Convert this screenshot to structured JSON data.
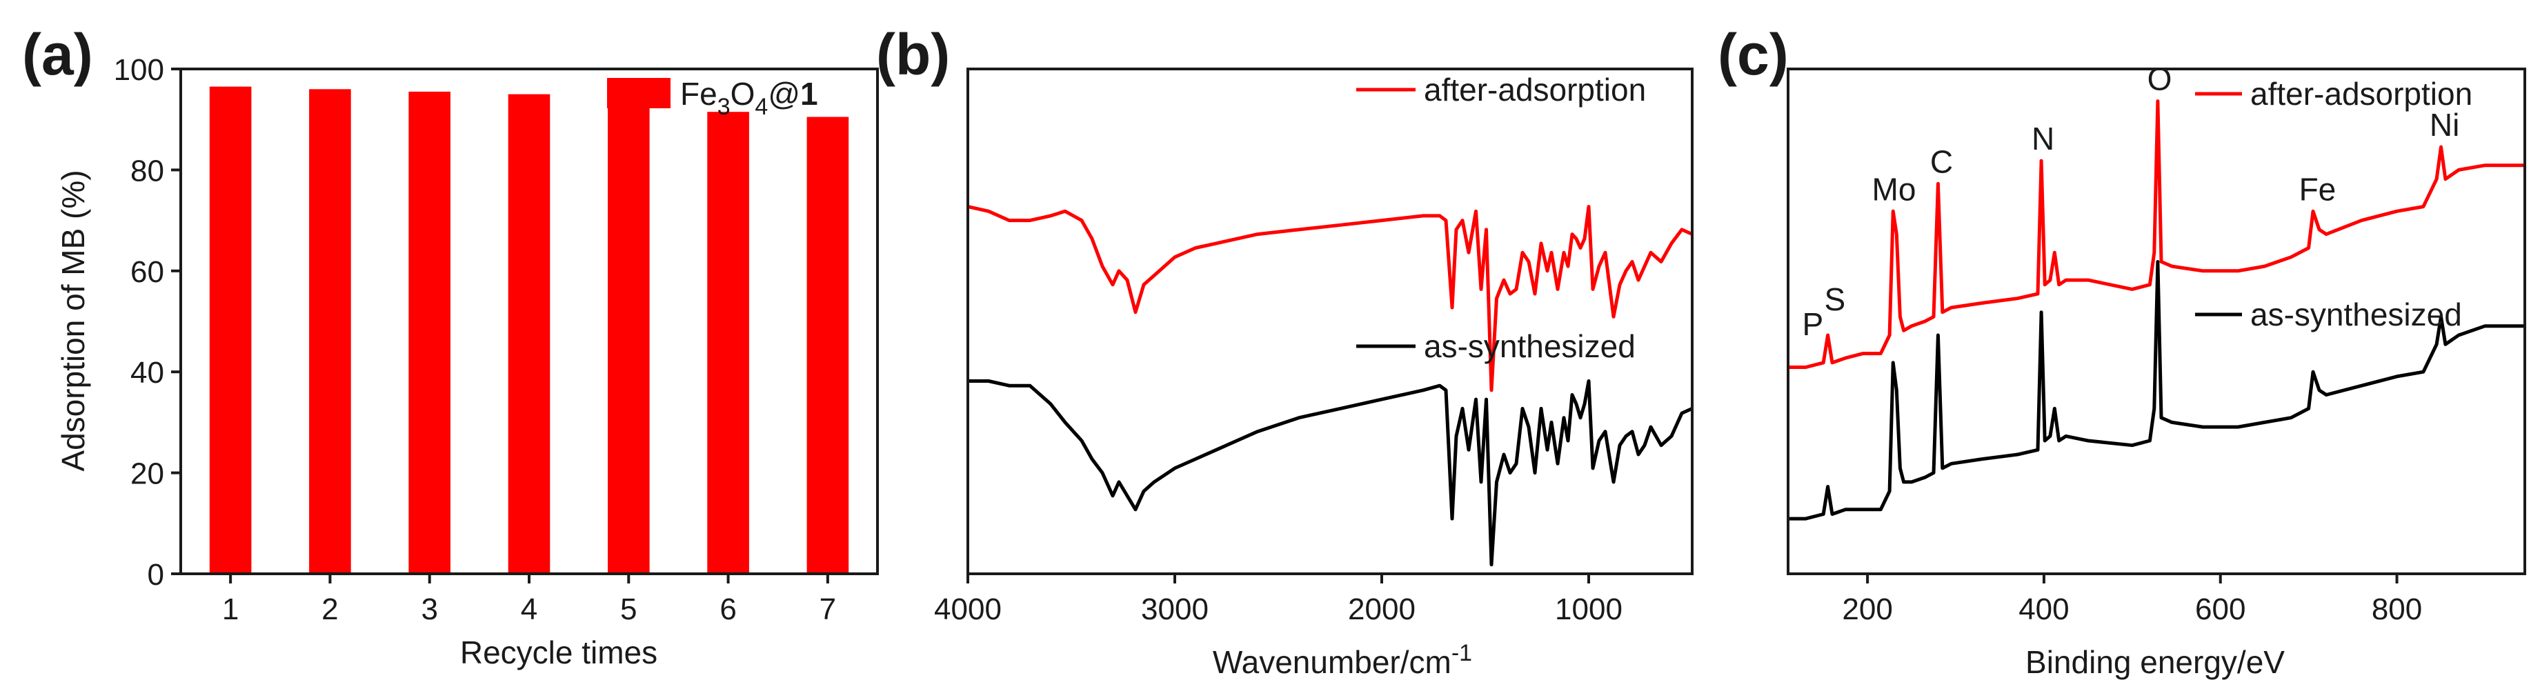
{
  "figure_title": "",
  "chart_data": [
    {
      "type": "bar",
      "panel_label": "(a)",
      "title": "",
      "xlabel": "Recycle times",
      "ylabel": "Adsorption of MB (%)",
      "categories": [
        "1",
        "2",
        "3",
        "4",
        "5",
        "6",
        "7"
      ],
      "series": [
        {
          "name": "Fe3O4@1",
          "values": [
            96.5,
            96.0,
            95.5,
            95.0,
            93.5,
            91.5,
            90.5
          ]
        }
      ],
      "legend": {
        "label_parts": [
          "Fe",
          "3",
          "O",
          "4",
          "@",
          "1"
        ],
        "color": "#ff0000",
        "position": "top-right"
      },
      "ylim": [
        0,
        100
      ],
      "yticks": [
        "0",
        "20",
        "40",
        "60",
        "80",
        "100"
      ],
      "grid": false,
      "bar_color": "#ff0000"
    },
    {
      "type": "line",
      "panel_label": "(b)",
      "title": "",
      "xlabel_parts": [
        "Wavenumber/cm",
        "-1"
      ],
      "ylabel": "",
      "xlim": [
        4000,
        500
      ],
      "xticks": [
        "4000",
        "3000",
        "2000",
        "1000"
      ],
      "xtick_values": [
        4000,
        3000,
        2000,
        1000
      ],
      "yticks_shown": false,
      "grid": false,
      "legend_position": "right",
      "series": [
        {
          "name": "after-adsorption",
          "color": "#ff0000",
          "x": [
            4000,
            3900,
            3800,
            3700,
            3600,
            3530,
            3450,
            3400,
            3350,
            3300,
            3270,
            3230,
            3190,
            3150,
            3100,
            3000,
            2900,
            2800,
            2600,
            2400,
            2200,
            2000,
            1800,
            1720,
            1690,
            1660,
            1640,
            1610,
            1580,
            1545,
            1520,
            1495,
            1470,
            1445,
            1410,
            1380,
            1350,
            1320,
            1290,
            1260,
            1230,
            1200,
            1180,
            1150,
            1120,
            1100,
            1080,
            1060,
            1040,
            1020,
            1000,
            980,
            950,
            920,
            880,
            850,
            820,
            790,
            760,
            730,
            700,
            650,
            600,
            550,
            500
          ],
          "y": [
            80,
            79,
            77,
            77,
            78,
            79,
            77,
            73,
            67,
            63,
            66,
            64,
            57,
            63,
            65,
            69,
            71,
            72,
            74,
            75,
            76,
            77,
            78,
            78,
            77,
            58,
            75,
            77,
            70,
            79,
            62,
            75,
            40,
            60,
            64,
            61,
            62,
            70,
            68,
            61,
            72,
            66,
            70,
            62,
            70,
            67,
            74,
            73,
            71,
            73,
            80,
            62,
            67,
            70,
            56,
            63,
            66,
            68,
            64,
            67,
            70,
            68,
            72,
            75,
            74
          ]
        },
        {
          "name": "as-synthesized",
          "color": "#000000",
          "x": [
            4000,
            3900,
            3800,
            3700,
            3600,
            3530,
            3450,
            3400,
            3350,
            3300,
            3270,
            3230,
            3190,
            3150,
            3100,
            3000,
            2900,
            2800,
            2600,
            2400,
            2200,
            2000,
            1800,
            1720,
            1690,
            1660,
            1640,
            1610,
            1580,
            1545,
            1520,
            1495,
            1470,
            1445,
            1410,
            1380,
            1350,
            1320,
            1290,
            1260,
            1230,
            1200,
            1180,
            1150,
            1120,
            1100,
            1080,
            1060,
            1040,
            1020,
            1000,
            980,
            950,
            920,
            880,
            850,
            820,
            790,
            760,
            730,
            700,
            650,
            600,
            550,
            500
          ],
          "y": [
            42,
            42,
            41,
            41,
            37,
            33,
            29,
            25,
            22,
            17,
            20,
            17,
            14,
            18,
            20,
            23,
            25,
            27,
            31,
            34,
            36,
            38,
            40,
            41,
            40,
            12,
            30,
            36,
            27,
            38,
            20,
            38,
            2,
            20,
            26,
            22,
            24,
            36,
            32,
            22,
            36,
            27,
            33,
            24,
            34,
            29,
            39,
            37,
            34,
            37,
            42,
            23,
            29,
            31,
            20,
            28,
            30,
            31,
            26,
            28,
            32,
            28,
            30,
            35,
            36
          ]
        }
      ]
    },
    {
      "type": "line",
      "panel_label": "(c)",
      "title": "",
      "xlabel": "Binding energy/eV",
      "ylabel": "",
      "xlim": [
        110,
        945
      ],
      "xticks": [
        "200",
        "400",
        "600",
        "800"
      ],
      "xtick_values": [
        200,
        400,
        600,
        800
      ],
      "yticks_shown": false,
      "grid": false,
      "legend_position": "right",
      "annotations": [
        {
          "text": "P",
          "x": 138
        },
        {
          "text": "S",
          "x": 163
        },
        {
          "text": "Mo",
          "x": 230
        },
        {
          "text": "C",
          "x": 284
        },
        {
          "text": "N",
          "x": 399
        },
        {
          "text": "O",
          "x": 531
        },
        {
          "text": "Fe",
          "x": 710
        },
        {
          "text": "Ni",
          "x": 854
        }
      ],
      "series": [
        {
          "name": "after-adsorption",
          "color": "#ff0000",
          "x": [
            110,
            130,
            150,
            155,
            160,
            175,
            195,
            215,
            225,
            229,
            233,
            237,
            241,
            250,
            265,
            275,
            280,
            285,
            295,
            330,
            370,
            393,
            397,
            401,
            407,
            412,
            417,
            425,
            450,
            500,
            520,
            525,
            529,
            533,
            545,
            580,
            620,
            650,
            680,
            700,
            705,
            712,
            720,
            760,
            800,
            830,
            845,
            850,
            855,
            870,
            900,
            945
          ],
          "y": [
            45,
            45,
            46,
            52,
            46,
            47,
            48,
            48,
            52,
            79,
            74,
            56,
            53,
            54,
            55,
            56,
            85,
            57,
            58,
            59,
            60,
            61,
            90,
            63,
            64,
            70,
            63,
            64,
            64,
            62,
            63,
            70,
            103,
            68,
            67,
            66,
            66,
            67,
            69,
            71,
            79,
            75,
            74,
            77,
            79,
            80,
            86,
            93,
            86,
            88,
            89,
            89
          ]
        },
        {
          "name": "as-synthesized",
          "color": "#000000",
          "x": [
            110,
            130,
            150,
            155,
            160,
            175,
            195,
            215,
            225,
            229,
            233,
            237,
            241,
            250,
            265,
            275,
            280,
            285,
            295,
            330,
            370,
            393,
            397,
            401,
            407,
            412,
            417,
            425,
            450,
            500,
            520,
            525,
            529,
            533,
            545,
            580,
            620,
            650,
            680,
            700,
            705,
            712,
            720,
            760,
            800,
            830,
            845,
            850,
            855,
            870,
            900,
            945
          ],
          "y": [
            12,
            12,
            13,
            19,
            13,
            14,
            14,
            14,
            18,
            46,
            40,
            23,
            20,
            20,
            21,
            22,
            52,
            23,
            24,
            25,
            26,
            27,
            57,
            29,
            30,
            36,
            29,
            30,
            29,
            28,
            29,
            36,
            68,
            34,
            33,
            32,
            32,
            33,
            34,
            36,
            44,
            40,
            39,
            41,
            43,
            44,
            50,
            56,
            50,
            52,
            54,
            54
          ]
        }
      ]
    }
  ]
}
